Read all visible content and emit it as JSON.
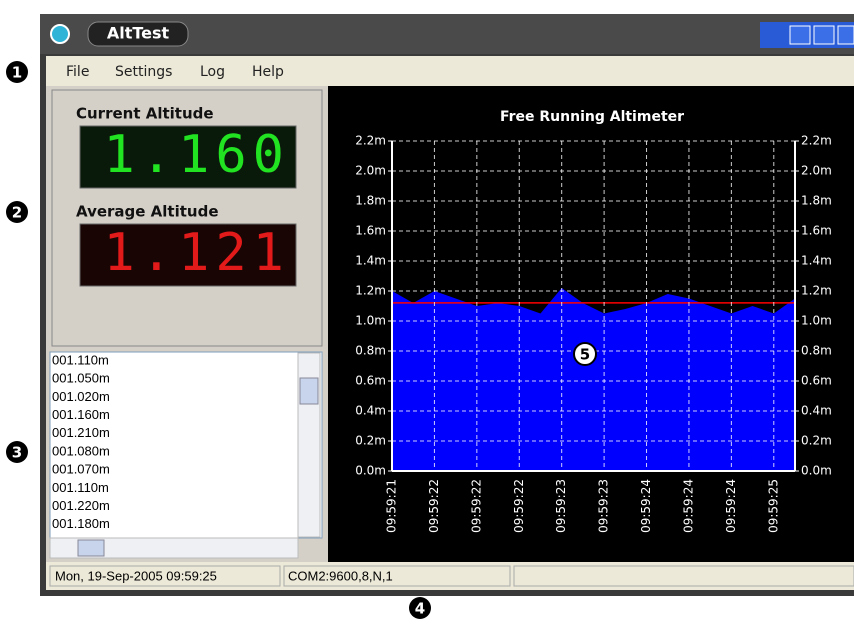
{
  "window": {
    "title": "AltTest"
  },
  "menu": [
    "File",
    "Settings",
    "Log",
    "Help"
  ],
  "displays": [
    {
      "label": "Current Altitude",
      "reading": "1.160"
    },
    {
      "label": "Average Altitude",
      "reading": "1.121"
    }
  ],
  "log": [
    "001.110m",
    "001.050m",
    "001.020m",
    "001.160m",
    "001.210m",
    "001.080m",
    "001.070m",
    "001.110m",
    "001.220m",
    "001.180m"
  ],
  "status_bar": [
    "Mon, 19-Sep-2005 09:59:25",
    "COM2:9600,8,N,1"
  ],
  "callouts": [
    "1",
    "2",
    "3",
    "4",
    "5"
  ],
  "chart_data": {
    "type": "area",
    "title": "Free Running Altimeter",
    "categories": [
      "09:59:21",
      null,
      "09:59:22",
      null,
      "09:59:22",
      null,
      "09:59:22",
      null,
      "09:59:23",
      null,
      "09:59:23",
      null,
      "09:59:24",
      null,
      "09:59:24",
      null,
      "09:59:24",
      null,
      "09:59:25",
      null
    ],
    "values": [
      1.2,
      1.12,
      1.2,
      1.15,
      1.1,
      1.12,
      1.1,
      1.05,
      1.22,
      1.12,
      1.05,
      1.08,
      1.12,
      1.18,
      1.15,
      1.1,
      1.05,
      1.1,
      1.05,
      1.15
    ],
    "color": "#0000ff",
    "average_line": 1.121,
    "average_color": "#ff0000",
    "ylim": [
      0,
      2.2
    ],
    "yticks": [
      {
        "value": 0,
        "label": "0.0m"
      },
      {
        "value": 0.2,
        "label": "0.2m"
      },
      {
        "value": 0.4,
        "label": "0.4m"
      },
      {
        "value": 0.6,
        "label": "0.6m"
      },
      {
        "value": 0.8,
        "label": "0.8m"
      },
      {
        "value": 1.0,
        "label": "1.0m"
      },
      {
        "value": 1.2,
        "label": "1.2m"
      },
      {
        "value": 1.4,
        "label": "1.4m"
      },
      {
        "value": 1.6,
        "label": "1.6m"
      },
      {
        "value": 1.8,
        "label": "1.8m"
      },
      {
        "value": 2.0,
        "label": "2.0m"
      },
      {
        "value": 2.2,
        "label": "2.2m"
      }
    ],
    "grid": true
  }
}
